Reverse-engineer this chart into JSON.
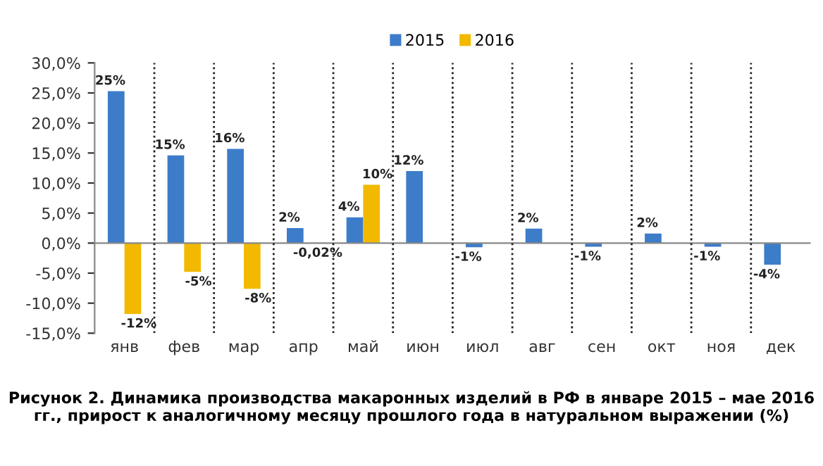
{
  "chart_data": {
    "type": "bar",
    "categories": [
      "янв",
      "фев",
      "мар",
      "апр",
      "май",
      "июн",
      "июл",
      "авг",
      "сен",
      "окт",
      "ноя",
      "дек"
    ],
    "series": [
      {
        "name": "2015",
        "color": "#3d7cc9",
        "values": [
          25.3,
          14.6,
          15.7,
          2.5,
          4.3,
          12.0,
          -0.7,
          2.4,
          -0.6,
          1.6,
          -0.6,
          -3.6
        ],
        "value_labels": [
          "25%",
          "15%",
          "16%",
          "2%",
          "4%",
          "12%",
          "-1%",
          "2%",
          "-1%",
          "2%",
          "-1%",
          "-4%"
        ]
      },
      {
        "name": "2016",
        "color": "#f2b900",
        "values": [
          -11.8,
          -4.8,
          -7.6,
          -0.02,
          9.7,
          null,
          null,
          null,
          null,
          null,
          null,
          null
        ],
        "value_labels": [
          "-12%",
          "-5%",
          "-8%",
          "-0,02%",
          "10%",
          null,
          null,
          null,
          null,
          null,
          null,
          null
        ]
      }
    ],
    "ylim": [
      -15,
      30
    ],
    "yticks": [
      {
        "value": -15,
        "label": "-15,0%"
      },
      {
        "value": -10,
        "label": "-10,0%"
      },
      {
        "value": -5,
        "label": "-5,0%"
      },
      {
        "value": 0,
        "label": "0,0%"
      },
      {
        "value": 5,
        "label": "5,0%"
      },
      {
        "value": 10,
        "label": "10,0%"
      },
      {
        "value": 15,
        "label": "15,0%"
      },
      {
        "value": 20,
        "label": "20,0%"
      },
      {
        "value": 25,
        "label": "25,0%"
      },
      {
        "value": 30,
        "label": "30,0%"
      }
    ],
    "grid": "x",
    "legend": "top",
    "annotations": [
      "Рисунок 2. Динамика производства макаронных изделий в РФ в январе 2015 – мае 2016 гг., прирост к аналогичному месяцу прошлого года в натуральном выражении (%)"
    ]
  }
}
